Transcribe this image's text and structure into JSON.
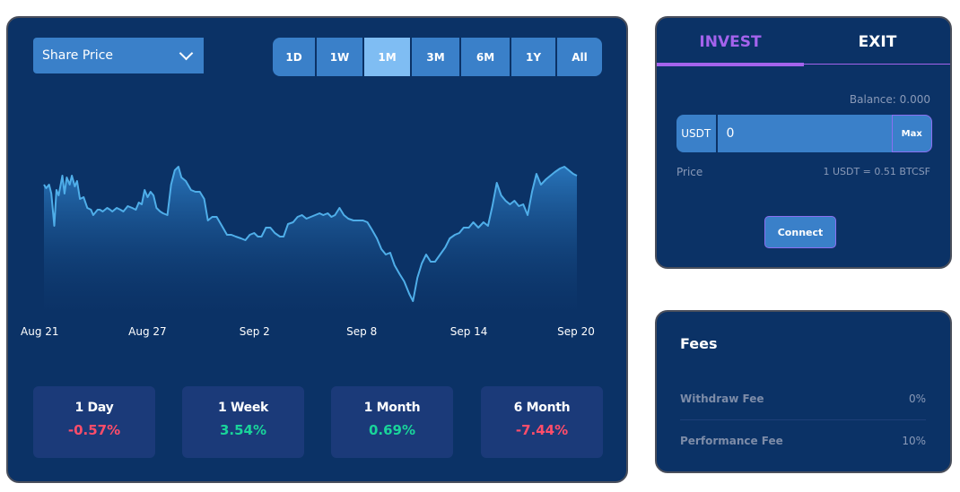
{
  "chart_panel": {
    "metric_select": "Share Price",
    "ranges": [
      "1D",
      "1W",
      "1M",
      "3M",
      "6M",
      "1Y",
      "All"
    ],
    "active_range": "1M"
  },
  "chart_data": {
    "type": "area",
    "title": "",
    "xlabel": "",
    "ylabel": "",
    "x_ticks": [
      "Aug 21",
      "Aug 27",
      "Sep 2",
      "Sep 8",
      "Sep 14",
      "Sep 20"
    ],
    "x_range_days": [
      0,
      30
    ],
    "ylim": [
      0,
      100
    ],
    "grid": false,
    "line_color": "#4faee9",
    "points": [
      [
        0,
        72
      ],
      [
        0.3,
        70
      ],
      [
        0.7,
        72
      ],
      [
        1,
        67
      ],
      [
        1.4,
        49
      ],
      [
        1.7,
        69
      ],
      [
        2,
        66
      ],
      [
        2.5,
        77
      ],
      [
        2.8,
        67
      ],
      [
        3.1,
        76
      ],
      [
        3.5,
        72
      ],
      [
        3.8,
        77
      ],
      [
        4.2,
        71
      ],
      [
        4.5,
        74
      ],
      [
        4.9,
        64
      ],
      [
        5.4,
        65
      ],
      [
        5.9,
        59
      ],
      [
        6.4,
        58
      ],
      [
        6.7,
        55
      ],
      [
        7.3,
        58
      ],
      [
        7.6,
        58
      ],
      [
        8,
        57
      ],
      [
        8.3,
        58
      ],
      [
        8.6,
        59
      ],
      [
        9,
        58
      ],
      [
        9.3,
        57
      ],
      [
        9.9,
        59
      ],
      [
        10.4,
        58
      ],
      [
        10.8,
        57
      ],
      [
        11.4,
        60
      ],
      [
        12,
        59
      ],
      [
        12.5,
        58
      ],
      [
        12.9,
        62
      ],
      [
        13.3,
        61
      ],
      [
        13.7,
        69
      ],
      [
        14.1,
        65
      ],
      [
        14.5,
        68
      ],
      [
        14.9,
        66
      ],
      [
        15.3,
        59
      ],
      [
        15.8,
        57
      ],
      [
        16.2,
        56
      ],
      [
        16.8,
        55
      ],
      [
        17.3,
        72
      ],
      [
        17.8,
        80
      ],
      [
        18.3,
        82
      ],
      [
        18.7,
        76
      ],
      [
        19.3,
        74
      ],
      [
        20,
        69
      ],
      [
        20.6,
        68
      ],
      [
        21.2,
        68
      ],
      [
        21.8,
        64
      ],
      [
        22.3,
        52
      ],
      [
        22.9,
        54
      ],
      [
        23.5,
        54
      ],
      [
        24.2,
        49
      ],
      [
        24.9,
        44
      ],
      [
        25.5,
        44
      ],
      [
        26.1,
        43
      ],
      [
        26.8,
        42
      ],
      [
        27.4,
        41
      ],
      [
        28,
        44
      ],
      [
        28.6,
        45
      ],
      [
        29.1,
        43
      ],
      [
        29.6,
        43
      ],
      [
        30.2,
        48
      ],
      [
        30.8,
        48
      ],
      [
        31.4,
        45
      ],
      [
        32.1,
        43
      ],
      [
        32.6,
        43
      ],
      [
        33.2,
        50
      ],
      [
        33.9,
        51
      ],
      [
        34.5,
        54
      ],
      [
        35.1,
        55
      ],
      [
        35.7,
        53
      ],
      [
        36.3,
        54
      ],
      [
        36.9,
        55
      ],
      [
        37.5,
        56
      ],
      [
        38,
        55
      ],
      [
        38.6,
        56
      ],
      [
        39.1,
        54
      ],
      [
        39.6,
        55
      ],
      [
        40.2,
        59
      ],
      [
        40.8,
        55
      ],
      [
        41.4,
        53
      ],
      [
        42.1,
        52
      ],
      [
        42.8,
        52
      ],
      [
        43.4,
        52
      ],
      [
        44,
        51
      ],
      [
        44.6,
        47
      ],
      [
        45.3,
        42
      ],
      [
        45.9,
        36
      ],
      [
        46.5,
        33
      ],
      [
        47.1,
        34
      ],
      [
        47.7,
        27
      ],
      [
        48.4,
        22
      ],
      [
        49,
        18
      ],
      [
        49.7,
        11
      ],
      [
        50.2,
        7
      ],
      [
        50.8,
        20
      ],
      [
        51.4,
        28
      ],
      [
        52,
        33
      ],
      [
        52.6,
        29
      ],
      [
        53.2,
        29
      ],
      [
        53.9,
        33
      ],
      [
        54.6,
        37
      ],
      [
        55.2,
        42
      ],
      [
        55.9,
        44
      ],
      [
        56.5,
        45
      ],
      [
        57.1,
        48
      ],
      [
        57.8,
        48
      ],
      [
        58.4,
        51
      ],
      [
        59.1,
        48
      ],
      [
        59.8,
        51
      ],
      [
        60.4,
        49
      ],
      [
        61,
        60
      ],
      [
        61.6,
        73
      ],
      [
        62.2,
        66
      ],
      [
        62.8,
        63
      ],
      [
        63.4,
        61
      ],
      [
        64,
        63
      ],
      [
        64.6,
        60
      ],
      [
        65.2,
        61
      ],
      [
        65.8,
        55
      ],
      [
        66.4,
        68
      ],
      [
        67,
        78
      ],
      [
        67.6,
        72
      ],
      [
        68.3,
        75
      ],
      [
        68.9,
        77
      ],
      [
        69.5,
        79
      ],
      [
        70.2,
        81
      ],
      [
        70.8,
        82
      ],
      [
        71.4,
        80
      ],
      [
        72,
        78
      ],
      [
        72.5,
        77
      ]
    ]
  },
  "stats": [
    {
      "label": "1 Day",
      "value": "-0.57%",
      "trend": "negative"
    },
    {
      "label": "1 Week",
      "value": "3.54%",
      "trend": "positive"
    },
    {
      "label": "1 Month",
      "value": "0.69%",
      "trend": "positive"
    },
    {
      "label": "6 Month",
      "value": "-7.44%",
      "trend": "negative"
    }
  ],
  "invest_panel": {
    "tabs": {
      "invest": "INVEST",
      "exit": "EXIT"
    },
    "active_tab": "INVEST",
    "balance": "Balance: 0.000",
    "currency": "USDT",
    "amount": "0",
    "max_label": "Max",
    "price_label": "Price",
    "price_value": "1 USDT = 0.51 BTCSF",
    "connect_label": "Connect"
  },
  "fees_panel": {
    "title": "Fees",
    "rows": [
      {
        "name": "Withdraw Fee",
        "value": "0%"
      },
      {
        "name": "Performance Fee",
        "value": "10%"
      }
    ]
  },
  "colors": {
    "card_bg": "#0b3266",
    "accent_blue": "#3a80c9",
    "active_range": "#7fbdf3",
    "accent_purple": "#a463ec",
    "positive": "#19d49a",
    "negative": "#ff4d6a"
  }
}
